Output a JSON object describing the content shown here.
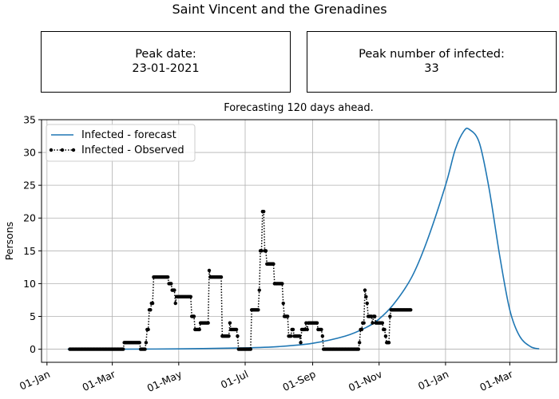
{
  "title": "Saint Vincent and the Grenadines",
  "peak_date": {
    "label": "Peak date:",
    "value": "23-01-2021"
  },
  "peak_infected": {
    "label": "Peak number of infected:",
    "value": "33"
  },
  "chart_data": {
    "type": "line",
    "title": "Forecasting 120 days ahead.",
    "xlabel": "",
    "ylabel": "Persons",
    "x_type": "date",
    "xlim": [
      "2019-12-27",
      "2021-04-13"
    ],
    "ylim": [
      -2,
      35
    ],
    "x_ticks": [
      {
        "date": "2020-01-01",
        "label": "01-Jan"
      },
      {
        "date": "2020-03-01",
        "label": "01-Mar"
      },
      {
        "date": "2020-05-01",
        "label": "01-May"
      },
      {
        "date": "2020-07-01",
        "label": "01-Jul"
      },
      {
        "date": "2020-09-01",
        "label": "01-Sep"
      },
      {
        "date": "2020-11-01",
        "label": "01-Nov"
      },
      {
        "date": "2021-01-01",
        "label": "01-Jan"
      },
      {
        "date": "2021-03-01",
        "label": "01-Mar"
      }
    ],
    "y_ticks": [
      0,
      5,
      10,
      15,
      20,
      25,
      30,
      35
    ],
    "grid": true,
    "legend_position": "top-left",
    "series": [
      {
        "name": "Infected - forecast",
        "style": "solid",
        "color": "#1f77b4",
        "points": [
          [
            "2020-01-20",
            0
          ],
          [
            "2020-03-01",
            0
          ],
          [
            "2020-05-01",
            0.05
          ],
          [
            "2020-07-01",
            0.2
          ],
          [
            "2020-08-01",
            0.4
          ],
          [
            "2020-09-01",
            0.9
          ],
          [
            "2020-10-01",
            2.0
          ],
          [
            "2020-10-20",
            3.3
          ],
          [
            "2020-11-01",
            4.6
          ],
          [
            "2020-11-15",
            7.0
          ],
          [
            "2020-12-01",
            11.0
          ],
          [
            "2020-12-15",
            16.5
          ],
          [
            "2021-01-01",
            25.0
          ],
          [
            "2021-01-10",
            30.5
          ],
          [
            "2021-01-18",
            33.3
          ],
          [
            "2021-01-23",
            33.5
          ],
          [
            "2021-02-01",
            31.5
          ],
          [
            "2021-02-10",
            24.5
          ],
          [
            "2021-02-20",
            14.0
          ],
          [
            "2021-03-01",
            6.0
          ],
          [
            "2021-03-10",
            2.0
          ],
          [
            "2021-03-20",
            0.4
          ],
          [
            "2021-03-28",
            0.05
          ]
        ]
      },
      {
        "name": "Infected - Observed",
        "style": "dotted",
        "color": "#000000",
        "marker": "circle",
        "segments": [
          [
            "2020-01-22",
            "2020-03-11",
            0
          ],
          [
            "2020-03-12",
            "2020-03-26",
            1
          ],
          [
            "2020-03-27",
            "2020-03-31",
            0
          ],
          [
            "2020-04-01",
            "2020-04-01",
            1
          ],
          [
            "2020-04-02",
            "2020-04-03",
            3
          ],
          [
            "2020-04-04",
            "2020-04-05",
            6
          ],
          [
            "2020-04-06",
            "2020-04-07",
            7
          ],
          [
            "2020-04-08",
            "2020-04-21",
            11
          ],
          [
            "2020-04-22",
            "2020-04-24",
            10
          ],
          [
            "2020-04-25",
            "2020-04-27",
            9
          ],
          [
            "2020-04-28",
            "2020-04-28",
            7
          ],
          [
            "2020-04-29",
            "2020-05-12",
            8
          ],
          [
            "2020-05-13",
            "2020-05-15",
            5
          ],
          [
            "2020-05-16",
            "2020-05-20",
            3
          ],
          [
            "2020-05-21",
            "2020-05-28",
            4
          ],
          [
            "2020-05-29",
            "2020-05-29",
            12
          ],
          [
            "2020-05-30",
            "2020-06-09",
            11
          ],
          [
            "2020-06-10",
            "2020-06-16",
            2
          ],
          [
            "2020-06-17",
            "2020-06-17",
            4
          ],
          [
            "2020-06-18",
            "2020-06-23",
            3
          ],
          [
            "2020-06-24",
            "2020-06-24",
            2
          ],
          [
            "2020-06-25",
            "2020-07-06",
            0
          ],
          [
            "2020-07-07",
            "2020-07-13",
            6
          ],
          [
            "2020-07-14",
            "2020-07-14",
            9
          ],
          [
            "2020-07-15",
            "2020-07-16",
            15
          ],
          [
            "2020-07-17",
            "2020-07-18",
            21
          ],
          [
            "2020-07-19",
            "2020-07-20",
            15
          ],
          [
            "2020-07-21",
            "2020-07-27",
            13
          ],
          [
            "2020-07-28",
            "2020-08-04",
            10
          ],
          [
            "2020-08-05",
            "2020-08-05",
            7
          ],
          [
            "2020-08-06",
            "2020-08-09",
            5
          ],
          [
            "2020-08-10",
            "2020-08-12",
            2
          ],
          [
            "2020-08-13",
            "2020-08-14",
            3
          ],
          [
            "2020-08-15",
            "2020-08-20",
            2
          ],
          [
            "2020-08-21",
            "2020-08-21",
            1
          ],
          [
            "2020-08-22",
            "2020-08-25",
            3
          ],
          [
            "2020-08-26",
            "2020-08-26",
            4
          ],
          [
            "2020-08-27",
            "2020-08-27",
            3
          ],
          [
            "2020-08-28",
            "2020-09-05",
            4
          ],
          [
            "2020-09-06",
            "2020-09-09",
            3
          ],
          [
            "2020-09-10",
            "2020-09-10",
            2
          ],
          [
            "2020-09-11",
            "2020-10-13",
            0
          ],
          [
            "2020-10-14",
            "2020-10-14",
            1
          ],
          [
            "2020-10-15",
            "2020-10-16",
            3
          ],
          [
            "2020-10-17",
            "2020-10-18",
            4
          ],
          [
            "2020-10-19",
            "2020-10-19",
            9
          ],
          [
            "2020-10-20",
            "2020-10-20",
            8
          ],
          [
            "2020-10-21",
            "2020-10-21",
            7
          ],
          [
            "2020-10-22",
            "2020-10-25",
            5
          ],
          [
            "2020-10-26",
            "2020-10-26",
            4
          ],
          [
            "2020-10-27",
            "2020-10-28",
            5
          ],
          [
            "2020-10-29",
            "2020-11-04",
            4
          ],
          [
            "2020-11-05",
            "2020-11-06",
            3
          ],
          [
            "2020-11-07",
            "2020-11-07",
            2
          ],
          [
            "2020-11-08",
            "2020-11-10",
            1
          ],
          [
            "2020-11-11",
            "2020-11-11",
            5
          ],
          [
            "2020-11-12",
            "2020-11-30",
            6
          ]
        ]
      }
    ]
  }
}
